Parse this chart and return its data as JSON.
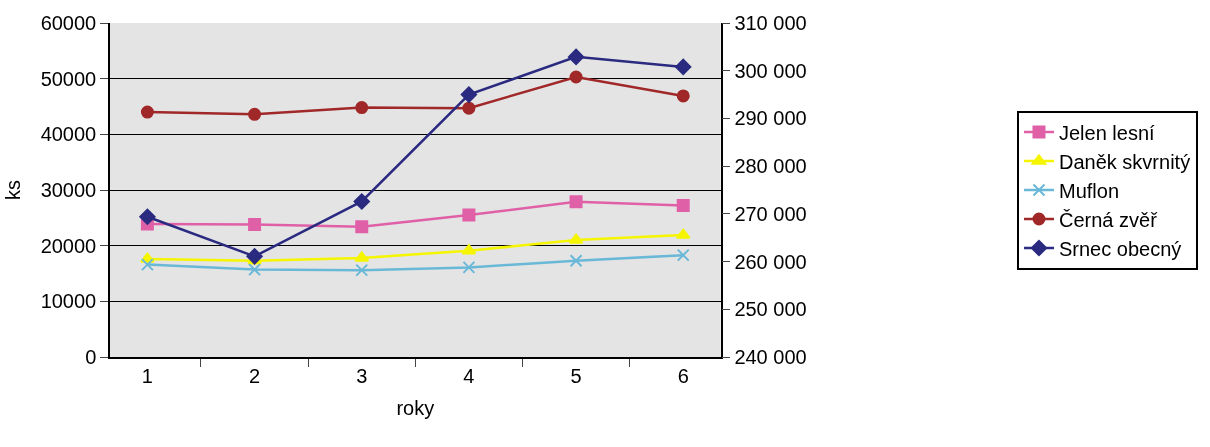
{
  "chart_data": {
    "type": "line",
    "xlabel": "roky",
    "ylabel": "ks",
    "categories": [
      "1",
      "2",
      "3",
      "4",
      "5",
      "6"
    ],
    "series": [
      {
        "name": "Jelen lesní",
        "color": "#e060a8",
        "marker": "square",
        "values": [
          23900,
          23800,
          23400,
          25500,
          27900,
          27200
        ]
      },
      {
        "name": "Daněk skvrnitý",
        "color": "#f5f500",
        "marker": "triangle",
        "values": [
          17600,
          17300,
          17800,
          19100,
          21000,
          21900
        ]
      },
      {
        "name": "Muflon",
        "color": "#6ab8d8",
        "marker": "cross",
        "values": [
          16600,
          15700,
          15600,
          16100,
          17300,
          18300
        ]
      },
      {
        "name": "Černá zvěř",
        "color": "#a02828",
        "marker": "circle",
        "values": [
          44000,
          43600,
          44800,
          44700,
          50300,
          46900
        ]
      },
      {
        "name": "Srnec obecný",
        "color": "#2a2a80",
        "marker": "diamond",
        "axis": "y2",
        "values": [
          269400,
          261100,
          272600,
          295000,
          302900,
          300800
        ]
      }
    ],
    "ylim": [
      0,
      60000
    ],
    "yticks": [
      0,
      10000,
      20000,
      30000,
      40000,
      50000,
      60000
    ],
    "y2lim": [
      240000,
      310000
    ],
    "y2ticks": [
      {
        "value": 240000,
        "label": "240 000"
      },
      {
        "value": 250000,
        "label": "250 000"
      },
      {
        "value": 260000,
        "label": "260 000"
      },
      {
        "value": 270000,
        "label": "270 000"
      },
      {
        "value": 280000,
        "label": "280 000"
      },
      {
        "value": 290000,
        "label": "290 000"
      },
      {
        "value": 300000,
        "label": "300 000"
      },
      {
        "value": 310000,
        "label": "310 000"
      }
    ],
    "grid": "y",
    "legend": "right",
    "line_style": "solid"
  }
}
